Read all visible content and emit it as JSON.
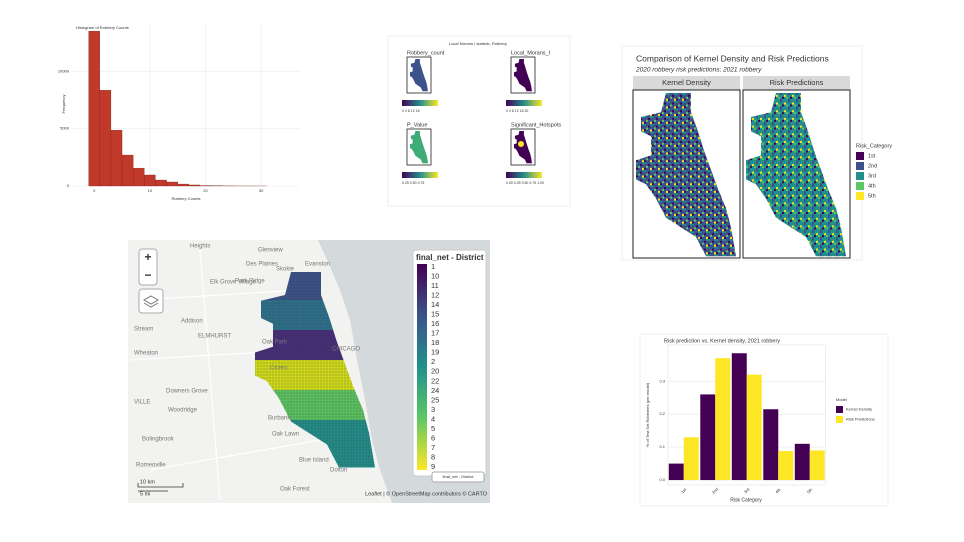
{
  "chart_data": [
    {
      "type": "histogram",
      "title": "Histogram of Robbery Counts",
      "x_label": "Robbery Counts",
      "y_label": "Frequency",
      "bins": [
        -1,
        1,
        3,
        5,
        7,
        9,
        11,
        13,
        15,
        17,
        19,
        21,
        23,
        25,
        27,
        29,
        31
      ],
      "values": [
        13500,
        8350,
        4870,
        2700,
        1560,
        960,
        520,
        350,
        170,
        90,
        40,
        20,
        10,
        5,
        3,
        2
      ],
      "color": "#c0392b",
      "xlim": [
        -4,
        37
      ],
      "xticks": [
        0,
        10,
        20,
        30
      ],
      "ylim": [
        0,
        14300
      ],
      "yticks": [
        0,
        5000,
        10000
      ],
      "grid": true
    },
    {
      "type": "grouped_bar",
      "title": "Risk prediction vs. Kernel density, 2021 robbery",
      "x_label": "Risk Category",
      "y_label": "% of Test Set Robberies (per model)",
      "categories": [
        "1st",
        "2nd",
        "3rd",
        "4th",
        "5th"
      ],
      "series": [
        {
          "name": "Kernel Density",
          "color": "#440154",
          "values": [
            0.05,
            0.26,
            0.385,
            0.215,
            0.11
          ]
        },
        {
          "name": "Risk Predictions",
          "color": "#fde725",
          "values": [
            0.13,
            0.37,
            0.32,
            0.088,
            0.09
          ]
        }
      ],
      "legend_title": "Model",
      "ylim": [
        -0.015,
        0.41
      ],
      "yticks": [
        {
          "value": 0,
          "label": "0.0"
        },
        0.1,
        0.2,
        0.3
      ],
      "grid": true
    }
  ],
  "morans_panel": {
    "title": "Local Morans I statistic, Robbery",
    "maps": [
      {
        "label": "Robbery_count",
        "scale": "0   4   8   12   16"
      },
      {
        "label": "Local_Morans_I",
        "scale": "0   4   8  12  16  20"
      },
      {
        "label": "P_Value",
        "scale": "0.25  0.50  0.75"
      },
      {
        "label": "Significant_Hotspots",
        "scale": "0.00 0.25 0.50 0.75 1.00"
      }
    ]
  },
  "comparison_panel": {
    "title": "Comparison of Kernel Density and Risk Predictions",
    "subtitle": "2020 robbery risk predictions; 2021 robbery",
    "facets": [
      "Kernel Density",
      "Risk Predictions"
    ],
    "legend_title": "Risk_Category",
    "categories": [
      "1st",
      "2nd",
      "3rd",
      "4th",
      "5th"
    ],
    "colors": [
      "#440154",
      "#3b528b",
      "#21908c",
      "#5dc863",
      "#fde725"
    ]
  },
  "leaflet_map": {
    "legend_title": "final_net - District",
    "districts": [
      "1",
      "10",
      "11",
      "12",
      "14",
      "15",
      "16",
      "17",
      "18",
      "19",
      "2",
      "20",
      "22",
      "24",
      "25",
      "3",
      "4",
      "5",
      "6",
      "7",
      "8",
      "9"
    ],
    "places": [
      "Heights",
      "Glenview",
      "Des Plaines",
      "Evanston",
      "Skokie",
      "Park Ridge",
      "Elk Grove Village",
      "Addison",
      "ELMHURST",
      "Stream",
      "Wheaton",
      "Oak Park",
      "CHICAGO",
      "Cicero",
      "Downers Grove",
      "VILLE",
      "Woodridge",
      "Burbank",
      "Bolingbrook",
      "Oak Lawn",
      "Blue Island",
      "Romeoville",
      "Oak Forest",
      "Dolton"
    ],
    "zoom_in": "+",
    "zoom_out": "−",
    "toggle_label": "final_net - District",
    "scale_km": "10 km",
    "scale_mi": "5 mi",
    "attribution": "Leaflet | © OpenStreetMap contributors © CARTO"
  }
}
